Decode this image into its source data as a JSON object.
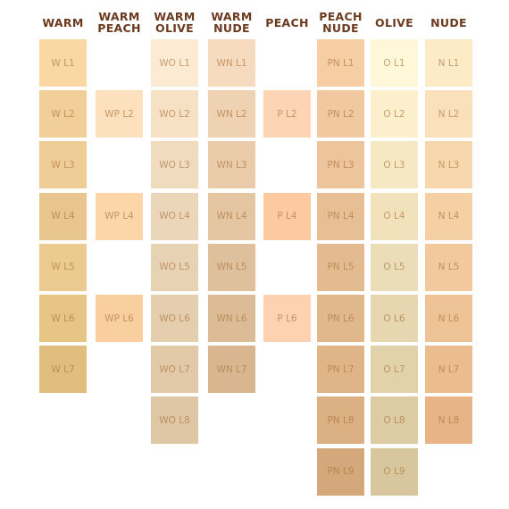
{
  "columns": [
    {
      "header": "WARM",
      "swatches": [
        {
          "label": "W L1",
          "color": "#f9d8a4"
        },
        {
          "label": "W L2",
          "color": "#f2cf98"
        },
        {
          "label": "W L3",
          "color": "#efcd97"
        },
        {
          "label": "W L4",
          "color": "#e9c68d"
        },
        {
          "label": "W L5",
          "color": "#eccb90"
        },
        {
          "label": "W L6",
          "color": "#e6c585"
        },
        {
          "label": "W L7",
          "color": "#e0bf7e"
        }
      ]
    },
    {
      "header": "WARM PEACH",
      "swatches": [
        null,
        {
          "label": "WP L2",
          "color": "#fde0bd"
        },
        null,
        {
          "label": "WP L4",
          "color": "#fcd5a8"
        },
        null,
        {
          "label": "WP L6",
          "color": "#f9cf9f"
        }
      ]
    },
    {
      "header": "WARM OLIVE",
      "swatches": [
        {
          "label": "WO L1",
          "color": "#fcebd2"
        },
        {
          "label": "WO L2",
          "color": "#f6e1c5"
        },
        {
          "label": "WO L3",
          "color": "#f0dbbf"
        },
        {
          "label": "WO L4",
          "color": "#ecd6ba"
        },
        {
          "label": "WO L5",
          "color": "#e7d2b4"
        },
        {
          "label": "WO L6",
          "color": "#e4cead"
        },
        {
          "label": "WO L7",
          "color": "#e2caa8"
        },
        {
          "label": "WO L8",
          "color": "#dfc7a5"
        }
      ]
    },
    {
      "header": "WARM NUDE",
      "swatches": [
        {
          "label": "WN L1",
          "color": "#f7dbbe"
        },
        {
          "label": "WN L2",
          "color": "#efd2b2"
        },
        {
          "label": "WN L3",
          "color": "#eaccab"
        },
        {
          "label": "WN L4",
          "color": "#e4c6a2"
        },
        {
          "label": "WN L5",
          "color": "#dfc09c"
        },
        {
          "label": "WN L6",
          "color": "#dcbc96"
        },
        {
          "label": "WN L7",
          "color": "#d9b68f"
        }
      ]
    },
    {
      "header": "PEACH",
      "swatches": [
        null,
        {
          "label": "P L2",
          "color": "#fed5b4"
        },
        null,
        {
          "label": "P L4",
          "color": "#fdc9a0"
        },
        null,
        {
          "label": "P L6",
          "color": "#fcd2b0"
        }
      ]
    },
    {
      "header": "PEACH NUDE",
      "swatches": [
        {
          "label": "PN L1",
          "color": "#f7cea4"
        },
        {
          "label": "PN L2",
          "color": "#f1c89f"
        },
        {
          "label": "PN L3",
          "color": "#edc49b"
        },
        {
          "label": "PN L4",
          "color": "#e8bf95"
        },
        {
          "label": "PN L5",
          "color": "#e4bb90"
        },
        {
          "label": "PN L6",
          "color": "#e1b78c"
        },
        {
          "label": "PN L7",
          "color": "#dfb487"
        },
        {
          "label": "PN L8",
          "color": "#dbb083"
        },
        {
          "label": "PN L9",
          "color": "#d4a87a"
        }
      ]
    },
    {
      "header": "OLIVE",
      "swatches": [
        {
          "label": "O L1",
          "color": "#fef8d8"
        },
        {
          "label": "O L2",
          "color": "#fcf0cc"
        },
        {
          "label": "O L3",
          "color": "#f7e8c4"
        },
        {
          "label": "O L4",
          "color": "#f1e2bc"
        },
        {
          "label": "O L5",
          "color": "#ebddb8"
        },
        {
          "label": "O L6",
          "color": "#e6d7b0"
        },
        {
          "label": "O L7",
          "color": "#e2d2aa"
        },
        {
          "label": "O L8",
          "color": "#ddcca3"
        },
        {
          "label": "O L9",
          "color": "#d8c79e"
        }
      ]
    },
    {
      "header": "NUDE",
      "swatches": [
        {
          "label": "N L1",
          "color": "#fdebc8"
        },
        {
          "label": "N L2",
          "color": "#fbe1bb"
        },
        {
          "label": "N L3",
          "color": "#f7d7ad"
        },
        {
          "label": "N L4",
          "color": "#f4d0a4"
        },
        {
          "label": "N L5",
          "color": "#f1c99c"
        },
        {
          "label": "N L6",
          "color": "#eec396"
        },
        {
          "label": "N L7",
          "color": "#ebbc8d"
        },
        {
          "label": "N L8",
          "color": "#e8b487"
        }
      ]
    }
  ]
}
